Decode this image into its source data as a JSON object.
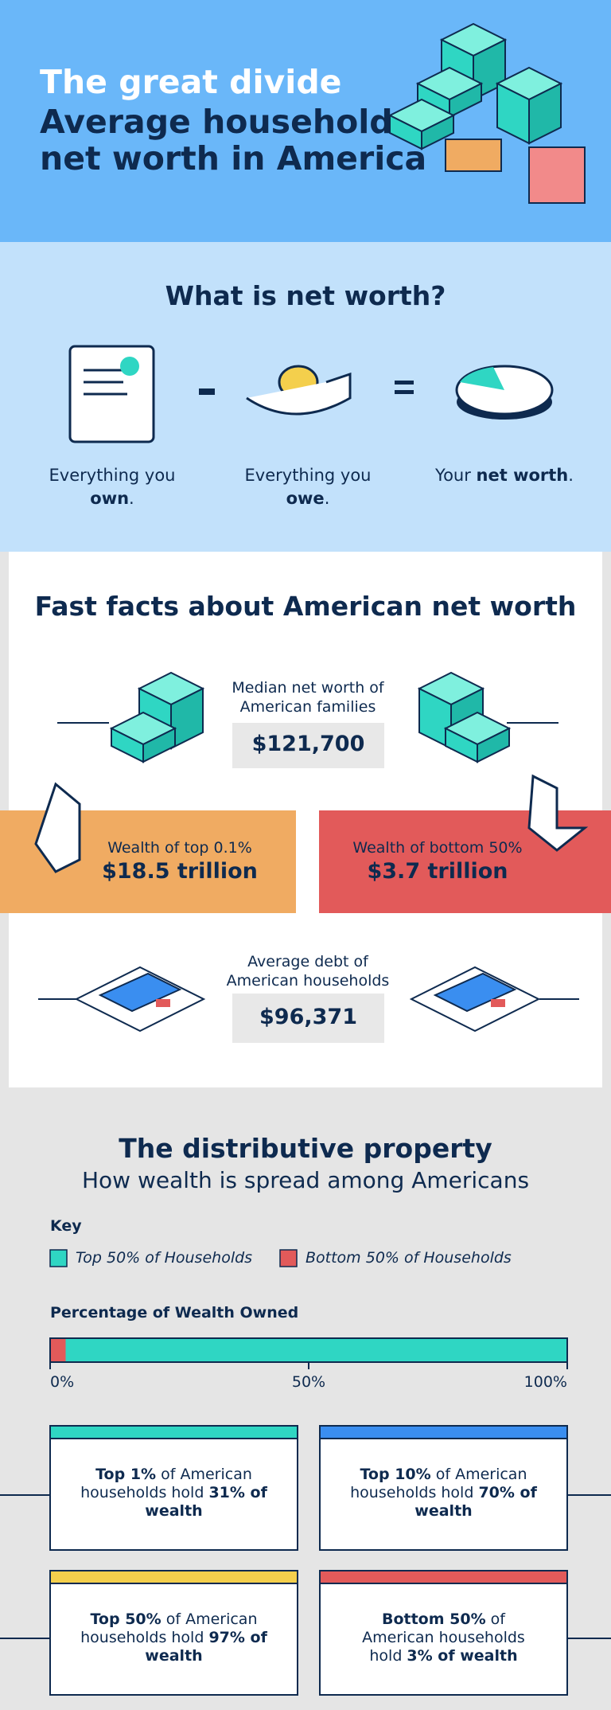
{
  "header": {
    "title_lines": [
      "The great divide",
      "Average household",
      "net worth in America"
    ]
  },
  "net_worth": {
    "title": "What is net worth?",
    "items": [
      {
        "parts": [
          {
            "text": "Everything you "
          },
          {
            "text": "own",
            "bold": true
          },
          {
            "text": "."
          }
        ]
      },
      {
        "parts": [
          {
            "text": "Everything you "
          },
          {
            "text": "owe",
            "bold": true
          },
          {
            "text": "."
          }
        ]
      },
      {
        "parts": [
          {
            "text": "Your "
          },
          {
            "text": "net worth",
            "bold": true
          },
          {
            "text": "."
          }
        ]
      }
    ]
  },
  "fast_facts": {
    "title": "Fast facts about American net worth",
    "median": {
      "label": "Median net worth of American families",
      "value": "$121,700"
    },
    "top": {
      "label": "Wealth of top 0.1%",
      "value": "$18.5 trillion",
      "color": "#f0ab62"
    },
    "bottom": {
      "label": "Wealth of bottom 50%",
      "value": "$3.7 trillion",
      "color": "#e25a5a"
    },
    "debt": {
      "label": "Average debt of American households",
      "value": "$96,371"
    }
  },
  "distribution": {
    "title": "The distributive property",
    "subtitle": "How wealth is spread among Americans",
    "chart_data": {
      "type": "bar",
      "key_title": "Key",
      "title": "Percentage of Wealth Owned",
      "series": [
        {
          "name": "Top 50% of Households",
          "color": "#2fd6c3",
          "values": [
            97
          ]
        },
        {
          "name": "Bottom 50% of Households",
          "color": "#e25a5a",
          "values": [
            3
          ]
        }
      ],
      "xlim": [
        0,
        100
      ],
      "xticks": [
        {
          "value": 0,
          "label": "0%"
        },
        {
          "value": 50,
          "label": "50%"
        },
        {
          "value": 100,
          "label": "100%"
        }
      ]
    },
    "cards": [
      {
        "color": "#2fd6c3",
        "parts": [
          {
            "text": "Top 1%",
            "bold": true
          },
          {
            "text": " of American households hold "
          },
          {
            "text": "31%",
            "bold": true
          },
          {
            "text": " of wealth",
            "bold": true
          }
        ]
      },
      {
        "color": "#3a8ef0",
        "parts": [
          {
            "text": "Top 10%",
            "bold": true
          },
          {
            "text": " of American households hold "
          },
          {
            "text": "70%",
            "bold": true
          },
          {
            "text": " of wealth",
            "bold": true
          }
        ]
      },
      {
        "color": "#f4cf4c",
        "parts": [
          {
            "text": "Top 50%",
            "bold": true
          },
          {
            "text": " of American households hold "
          },
          {
            "text": "97%",
            "bold": true
          },
          {
            "text": " of wealth",
            "bold": true
          }
        ]
      },
      {
        "color": "#e25a5a",
        "parts": [
          {
            "text": "Bottom 50%",
            "bold": true
          },
          {
            "text": " of American households hold "
          },
          {
            "text": "3% of wealth",
            "bold": true
          }
        ]
      }
    ]
  }
}
